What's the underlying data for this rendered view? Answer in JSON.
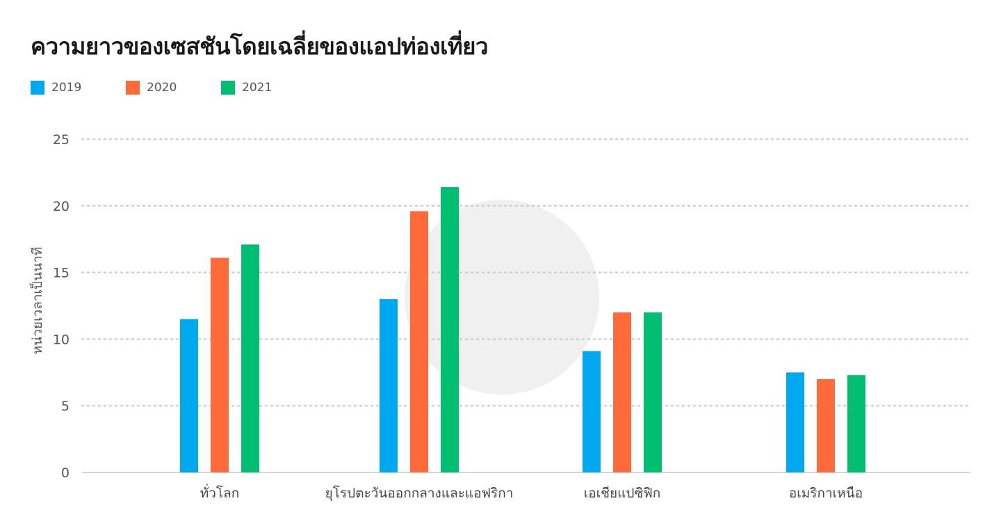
{
  "colors": {
    "series_2019": "#00a8f0",
    "series_2020": "#ff6a3a",
    "series_2021": "#00bf72",
    "grid": "#cfcfcf",
    "axis": "#c8c8c8"
  },
  "chart_data": {
    "type": "bar",
    "title": "ความยาวของเซสชันโดยเฉลี่ยของแอปท่องเที่ยว",
    "xlabel": "",
    "ylabel": "หน่วยเวลาเป็นนาที",
    "ylim": [
      0,
      25
    ],
    "yticks": [
      0,
      5,
      10,
      15,
      20,
      25
    ],
    "grid": true,
    "legend_position": "top-left",
    "categories": [
      "ทั่วโลก",
      "ยุโรปตะวันออกกลางและแอฟริกา",
      "เอเชียแปซิฟิก",
      "อเมริกาเหนือ"
    ],
    "series": [
      {
        "name": "2019",
        "values": [
          11.5,
          13.0,
          9.1,
          7.5
        ]
      },
      {
        "name": "2020",
        "values": [
          16.1,
          19.6,
          12.0,
          7.0
        ]
      },
      {
        "name": "2021",
        "values": [
          17.1,
          21.4,
          12.0,
          7.3
        ]
      }
    ]
  }
}
